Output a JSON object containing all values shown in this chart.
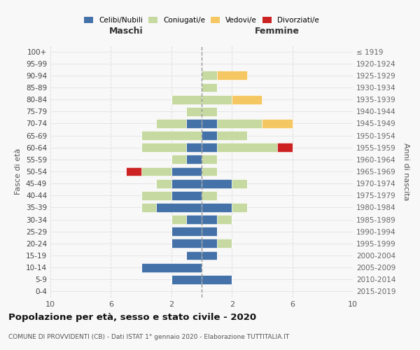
{
  "age_groups": [
    "0-4",
    "5-9",
    "10-14",
    "15-19",
    "20-24",
    "25-29",
    "30-34",
    "35-39",
    "40-44",
    "45-49",
    "50-54",
    "55-59",
    "60-64",
    "65-69",
    "70-74",
    "75-79",
    "80-84",
    "85-89",
    "90-94",
    "95-99",
    "100+"
  ],
  "birth_years": [
    "2015-2019",
    "2010-2014",
    "2005-2009",
    "2000-2004",
    "1995-1999",
    "1990-1994",
    "1985-1989",
    "1980-1984",
    "1975-1979",
    "1970-1974",
    "1965-1969",
    "1960-1964",
    "1955-1959",
    "1950-1954",
    "1945-1949",
    "1940-1944",
    "1935-1939",
    "1930-1934",
    "1925-1929",
    "1920-1924",
    "≤ 1919"
  ],
  "colors": {
    "celibi": "#4472a8",
    "coniugati": "#c5d9a0",
    "vedovi": "#f5c762",
    "divorziati": "#cc2222"
  },
  "maschi": {
    "celibi": [
      0,
      2,
      4,
      1,
      2,
      2,
      1,
      3,
      2,
      2,
      2,
      1,
      1,
      0,
      1,
      0,
      0,
      0,
      0,
      0,
      0
    ],
    "coniugati": [
      0,
      0,
      0,
      0,
      0,
      0,
      1,
      1,
      2,
      1,
      2,
      1,
      3,
      4,
      2,
      1,
      2,
      0,
      0,
      0,
      0
    ],
    "vedovi": [
      0,
      0,
      0,
      0,
      0,
      0,
      0,
      0,
      0,
      0,
      0,
      0,
      0,
      0,
      0,
      0,
      0,
      0,
      0,
      0,
      0
    ],
    "divorziati": [
      0,
      0,
      0,
      0,
      0,
      0,
      0,
      0,
      0,
      0,
      1,
      0,
      0,
      0,
      0,
      0,
      0,
      0,
      0,
      0,
      0
    ]
  },
  "femmine": {
    "celibi": [
      0,
      2,
      0,
      1,
      1,
      1,
      1,
      2,
      0,
      2,
      0,
      0,
      1,
      1,
      1,
      0,
      0,
      0,
      0,
      0,
      0
    ],
    "coniugati": [
      0,
      0,
      0,
      0,
      1,
      0,
      1,
      1,
      1,
      1,
      1,
      1,
      4,
      2,
      3,
      1,
      2,
      1,
      1,
      0,
      0
    ],
    "vedovi": [
      0,
      0,
      0,
      0,
      0,
      0,
      0,
      0,
      0,
      0,
      0,
      0,
      0,
      0,
      2,
      0,
      2,
      0,
      2,
      0,
      0
    ],
    "divorziati": [
      0,
      0,
      0,
      0,
      0,
      0,
      0,
      0,
      0,
      0,
      0,
      0,
      1,
      0,
      0,
      0,
      0,
      0,
      0,
      0,
      0
    ]
  },
  "xlim": 10,
  "title": "Popolazione per età, sesso e stato civile - 2020",
  "subtitle": "COMUNE DI PROVVIDENTI (CB) - Dati ISTAT 1° gennaio 2020 - Elaborazione TUTTITALIA.IT",
  "ylabel_left": "Fasce di età",
  "ylabel_right": "Anni di nascita",
  "xlabel_left": "Maschi",
  "xlabel_right": "Femmine"
}
